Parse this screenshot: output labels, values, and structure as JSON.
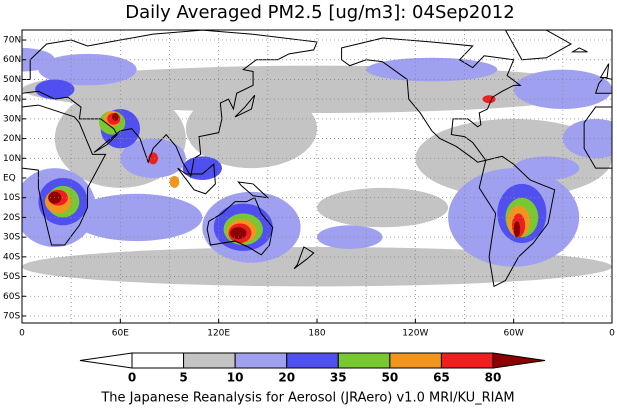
{
  "title": "Daily Averaged PM2.5 [ug/m3]: 04Sep2012",
  "lat_labels": [
    "70N",
    "60N",
    "50N",
    "40N",
    "30N",
    "20N",
    "10N",
    "EQ",
    "10S",
    "20S",
    "30S",
    "40S",
    "50S",
    "60S",
    "70S"
  ],
  "lon_labels": [
    "0",
    "60E",
    "120E",
    "180",
    "120W",
    "60W",
    "0"
  ],
  "colorbar": {
    "levels": [
      0,
      5,
      10,
      20,
      35,
      50,
      65,
      80
    ],
    "colors": [
      "#ffffff",
      "#ffffff",
      "#c4c4c4",
      "#a0a0f0",
      "#5050f0",
      "#78c832",
      "#f0961e",
      "#f01e1e",
      "#8c0000"
    ]
  },
  "footer": "The Japanese Reanalysis for Aerosol (JRAero) v1.0 MRI/KU_RIAM"
}
